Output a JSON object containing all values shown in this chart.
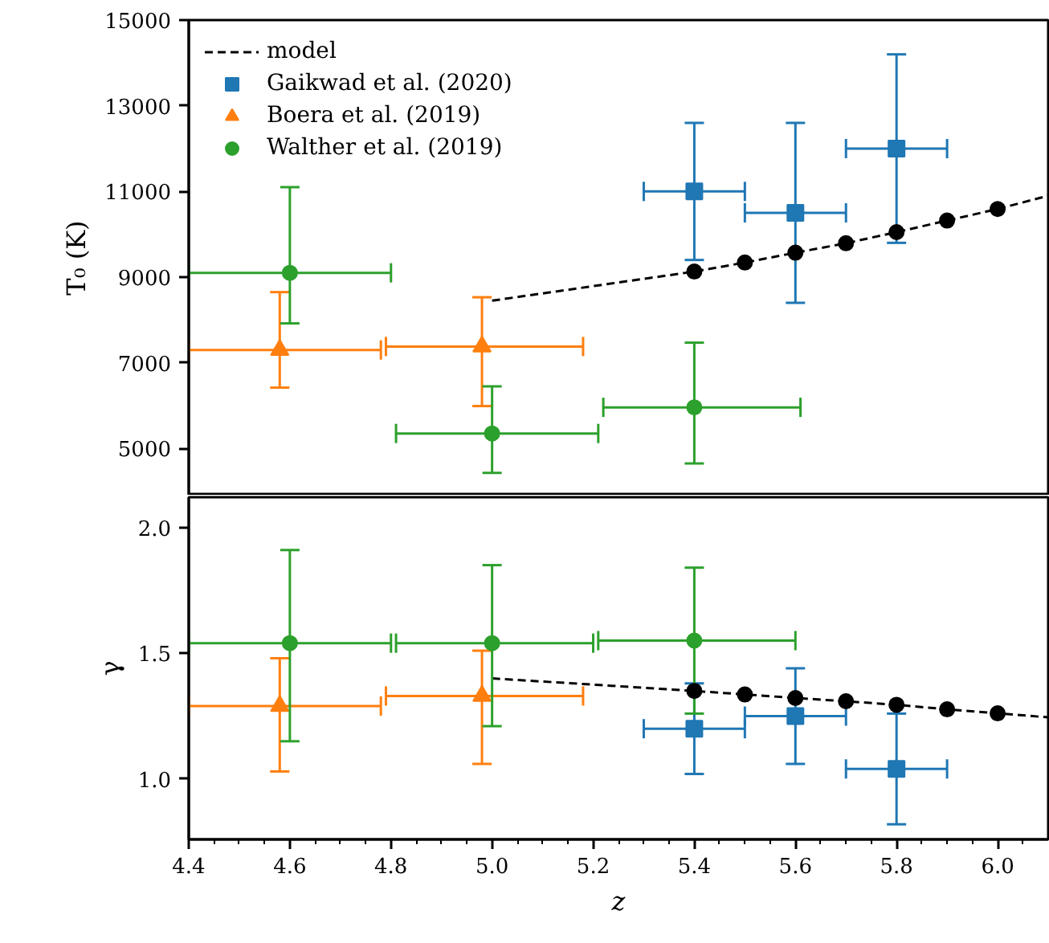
{
  "chart_data": [
    {
      "type": "scatter",
      "ylabel": "T₀ (K)",
      "xlim": [
        4.4,
        6.1
      ],
      "ylim": [
        3900,
        15000
      ],
      "yticks": [
        5000,
        7000,
        9000,
        11000,
        13000,
        15000
      ],
      "tick_labels": "y",
      "legend": "top left",
      "series": [
        {
          "name": "model",
          "type": "line",
          "color": "#000000",
          "line_style": "dashed",
          "x": [
            5.0,
            5.4,
            5.5,
            5.6,
            5.7,
            5.8,
            5.9,
            6.0,
            6.1
          ],
          "values": [
            8450,
            9130,
            9340,
            9570,
            9790,
            10050,
            10320,
            10590,
            10900
          ]
        },
        {
          "name": "Gaikwad et al. (2020)",
          "color": "#1f77b4",
          "marker": "square",
          "x": [
            5.4,
            5.6,
            5.8
          ],
          "values": [
            11000,
            10500,
            12000
          ],
          "errors": [
            [
              9400,
              12600
            ],
            [
              8400,
              12600
            ],
            [
              9800,
              14200
            ]
          ],
          "xerrors": [
            [
              5.3,
              5.5
            ],
            [
              5.5,
              5.7
            ],
            [
              5.7,
              5.9
            ]
          ]
        },
        {
          "name": "Boera et al. (2019)",
          "color": "#ff7f0e",
          "marker": "triangle",
          "x": [
            4.58,
            4.98
          ],
          "values": [
            7300,
            7380
          ],
          "errors": [
            [
              6420,
              8650
            ],
            [
              5990,
              8530
            ]
          ],
          "xerrors": [
            [
              4.4,
              4.78
            ],
            [
              4.79,
              5.18
            ]
          ]
        },
        {
          "name": "Walther et al. (2019)",
          "color": "#2ca02c",
          "marker": "circle",
          "x": [
            4.6,
            5.0,
            5.4
          ],
          "values": [
            9100,
            5350,
            5960
          ],
          "errors": [
            [
              7920,
              11100
            ],
            [
              4430,
              6450
            ],
            [
              4650,
              7470
            ]
          ],
          "xerrors": [
            [
              4.4,
              4.8
            ],
            [
              4.81,
              5.21
            ],
            [
              5.22,
              5.61
            ]
          ]
        },
        {
          "type": "scatter",
          "color": "#000000",
          "marker": "circle",
          "x": [
            5.4,
            5.5,
            5.6,
            5.7,
            5.8,
            5.9,
            6.0
          ],
          "values": [
            9130,
            9340,
            9570,
            9790,
            10050,
            10320,
            10590
          ]
        }
      ]
    },
    {
      "type": "scatter",
      "xlabel": "z",
      "ylabel": "γ",
      "xlim": [
        4.4,
        6.1
      ],
      "ylim": [
        0.76,
        2.12
      ],
      "yticks": [
        {
          "value": 1.0,
          "label": "1.0"
        },
        {
          "value": 1.5,
          "label": "1.5"
        },
        {
          "value": 2.0,
          "label": "2.0"
        }
      ],
      "xticks": [
        4.4,
        {
          "value": 4.45,
          "label": null
        },
        {
          "value": 4.5,
          "label": null
        },
        {
          "value": 4.55,
          "label": null
        },
        4.6,
        {
          "value": 4.65,
          "label": null
        },
        {
          "value": 4.7,
          "label": null
        },
        {
          "value": 4.75,
          "label": null
        },
        4.8,
        {
          "value": 4.85,
          "label": null
        },
        {
          "value": 4.9,
          "label": null
        },
        {
          "value": 4.95,
          "label": null
        },
        {
          "value": 5.0,
          "label": "5.0"
        },
        {
          "value": 5.05,
          "label": null
        },
        {
          "value": 5.1,
          "label": null
        },
        {
          "value": 5.15,
          "label": null
        },
        5.2,
        {
          "value": 5.25,
          "label": null
        },
        {
          "value": 5.3,
          "label": null
        },
        {
          "value": 5.35,
          "label": null
        },
        5.4,
        {
          "value": 5.45,
          "label": null
        },
        {
          "value": 5.5,
          "label": null
        },
        {
          "value": 5.55,
          "label": null
        },
        5.6,
        {
          "value": 5.65,
          "label": null
        },
        {
          "value": 5.7,
          "label": null
        },
        {
          "value": 5.75,
          "label": null
        },
        5.8,
        {
          "value": 5.85,
          "label": null
        },
        {
          "value": 5.9,
          "label": null
        },
        {
          "value": 5.95,
          "label": null
        },
        {
          "value": 6.0,
          "label": "6.0"
        },
        {
          "value": 6.05,
          "label": null
        }
      ],
      "series": [
        {
          "type": "line",
          "color": "#000000",
          "line_style": "dashed",
          "x": [
            5.0,
            5.4,
            5.5,
            5.6,
            5.7,
            5.8,
            5.9,
            6.0,
            6.1
          ],
          "values": [
            1.4,
            1.35,
            1.336,
            1.322,
            1.309,
            1.295,
            1.277,
            1.261,
            1.245
          ]
        },
        {
          "color": "#1f77b4",
          "marker": "square",
          "x": [
            5.4,
            5.6,
            5.8
          ],
          "values": [
            1.2,
            1.25,
            1.04
          ],
          "errors": [
            [
              1.02,
              1.38
            ],
            [
              1.06,
              1.44
            ],
            [
              0.82,
              1.26
            ]
          ],
          "xerrors": [
            [
              5.3,
              5.5
            ],
            [
              5.5,
              5.7
            ],
            [
              5.7,
              5.9
            ]
          ]
        },
        {
          "color": "#ff7f0e",
          "marker": "triangle",
          "x": [
            4.58,
            4.98
          ],
          "values": [
            1.29,
            1.33
          ],
          "errors": [
            [
              1.03,
              1.48
            ],
            [
              1.06,
              1.51
            ]
          ],
          "xerrors": [
            [
              4.4,
              4.78
            ],
            [
              4.79,
              5.18
            ]
          ]
        },
        {
          "color": "#2ca02c",
          "marker": "circle",
          "x": [
            4.6,
            5.0,
            5.4
          ],
          "values": [
            1.54,
            1.54,
            1.55
          ],
          "errors": [
            [
              1.15,
              1.91
            ],
            [
              1.21,
              1.85
            ],
            [
              1.26,
              1.84
            ]
          ],
          "xerrors": [
            [
              4.4,
              4.8
            ],
            [
              4.81,
              5.2
            ],
            [
              5.21,
              5.6
            ]
          ]
        },
        {
          "type": "scatter",
          "color": "#000000",
          "marker": "circle",
          "x": [
            5.4,
            5.5,
            5.6,
            5.7,
            5.8,
            5.9,
            6.0
          ],
          "values": [
            1.35,
            1.336,
            1.322,
            1.309,
            1.295,
            1.277,
            1.261
          ]
        }
      ]
    }
  ]
}
